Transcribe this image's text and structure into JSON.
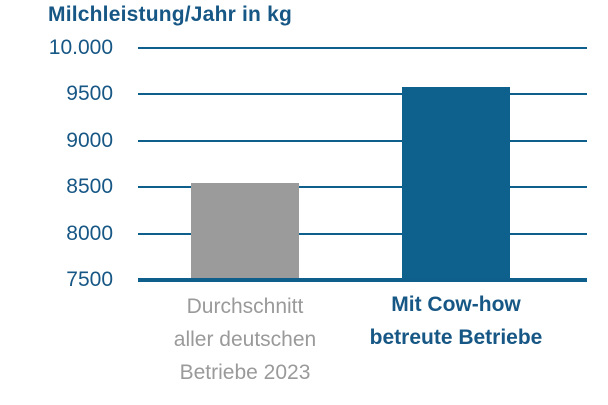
{
  "chart_data": {
    "type": "bar",
    "title": "Milchleistung/Jahr in kg",
    "xlabel": "",
    "ylabel": "Milchleistung/Jahr in kg",
    "ylim": [
      7500,
      10000
    ],
    "ytick_step": 500,
    "grid": true,
    "legend": "none",
    "yticks": [
      {
        "label": "10.000",
        "value": 10000
      },
      {
        "label": "9500",
        "value": 9500
      },
      {
        "label": "9000",
        "value": 9000
      },
      {
        "label": "8500",
        "value": 8500
      },
      {
        "label": "8000",
        "value": 8000
      },
      {
        "label": "7500",
        "value": 7500
      }
    ],
    "categories": [
      "Durchschnitt aller deutschen Betriebe 2023",
      "Mit Cow-how betreute Betriebe"
    ],
    "values": [
      8540,
      9580
    ],
    "bars": [
      {
        "id": "durchschnitt",
        "label_lines": [
          "Durchschnitt",
          "aller deutschen",
          "Betriebe 2023"
        ],
        "value": 8540,
        "color": "#9b9b9b",
        "label_color": "#9a9a9a",
        "emphasis": false
      },
      {
        "id": "cow-how",
        "label_lines": [
          "Mit Cow-how",
          "betreute Betriebe"
        ],
        "value": 9580,
        "color": "#0e608d",
        "label_color": "#175785",
        "emphasis": true
      }
    ],
    "colors": {
      "title_text": "#175785",
      "tick_text": "#175785",
      "gridline": "#0f5f8d",
      "axis": "#0f5f8d"
    }
  }
}
